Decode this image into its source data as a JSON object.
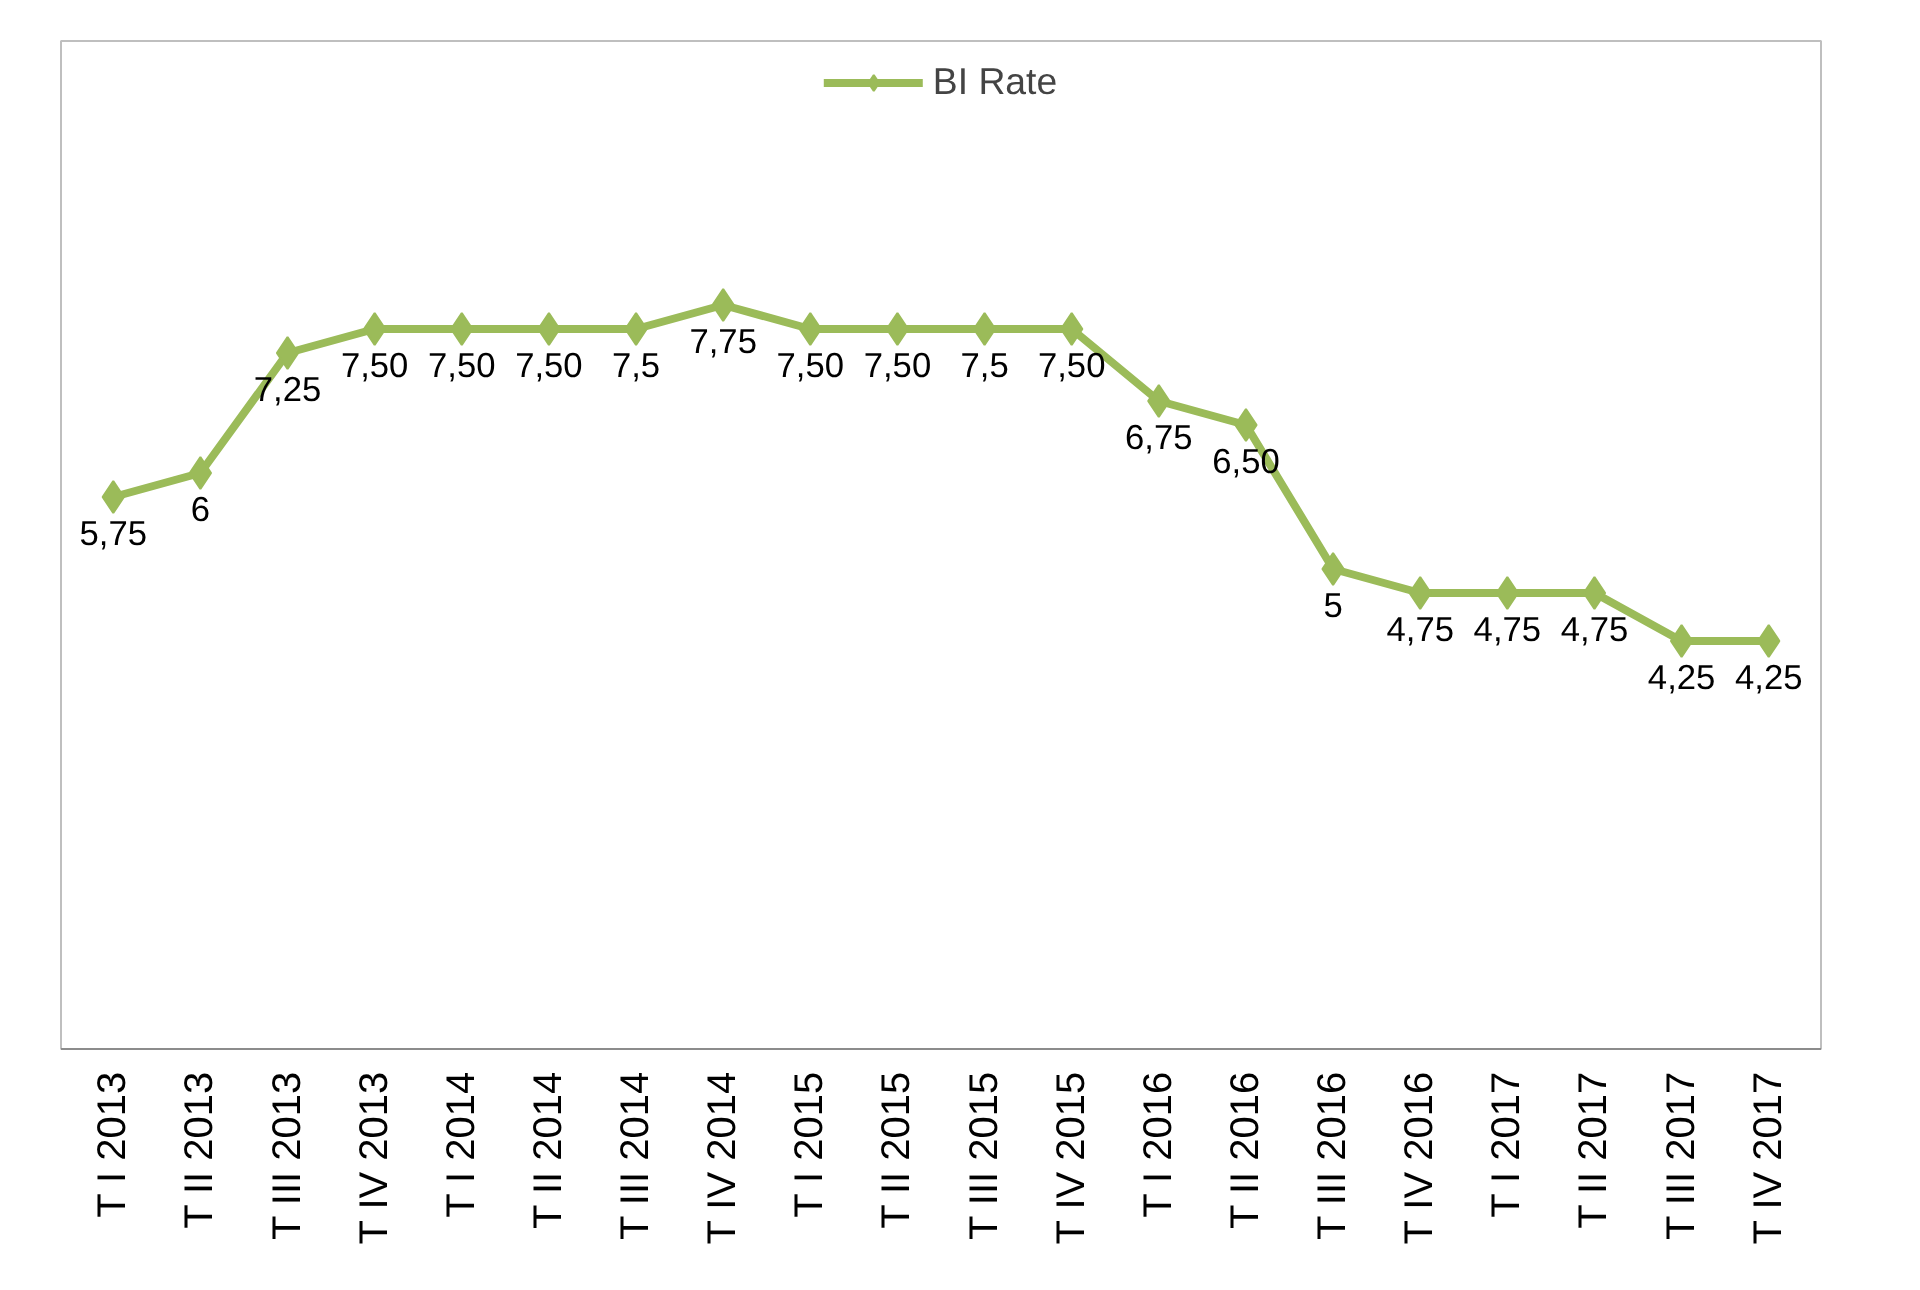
{
  "chart_data": {
    "type": "line",
    "categories": [
      "T I 2013",
      "T II 2013",
      "T III 2013",
      "T IV 2013",
      "T I 2014",
      "T II 2014",
      "T III 2014",
      "T IV 2014",
      "T I 2015",
      "T II 2015",
      "T III 2015",
      "T IV 2015",
      "T I 2016",
      "T II 2016",
      "T III 2016",
      "T IV 2016",
      "T I 2017",
      "T II 2017",
      "T III 2017",
      "T IV 2017"
    ],
    "series": [
      {
        "name": "BI Rate",
        "color": "#9bbb59",
        "values": [
          5.75,
          6,
          7.25,
          7.5,
          7.5,
          7.5,
          7.5,
          7.75,
          7.5,
          7.5,
          7.5,
          7.5,
          6.75,
          6.5,
          5,
          4.75,
          4.75,
          4.75,
          4.25,
          4.25
        ],
        "value_labels": [
          "5,75",
          "6",
          "7,25",
          "7,50",
          "7,50",
          "7,50",
          "7,5",
          "7,75",
          "7,50",
          "7,50",
          "7,5",
          "7,50",
          "6,75",
          "6,50",
          "5",
          "4,75",
          "4,75",
          "4,75",
          "4,25",
          "4,25"
        ]
      }
    ],
    "ylim": [
      0,
      10.5
    ],
    "tick_labels": "x",
    "grid": false,
    "legend": "top",
    "marker": "diamond",
    "line_style": "solid"
  }
}
